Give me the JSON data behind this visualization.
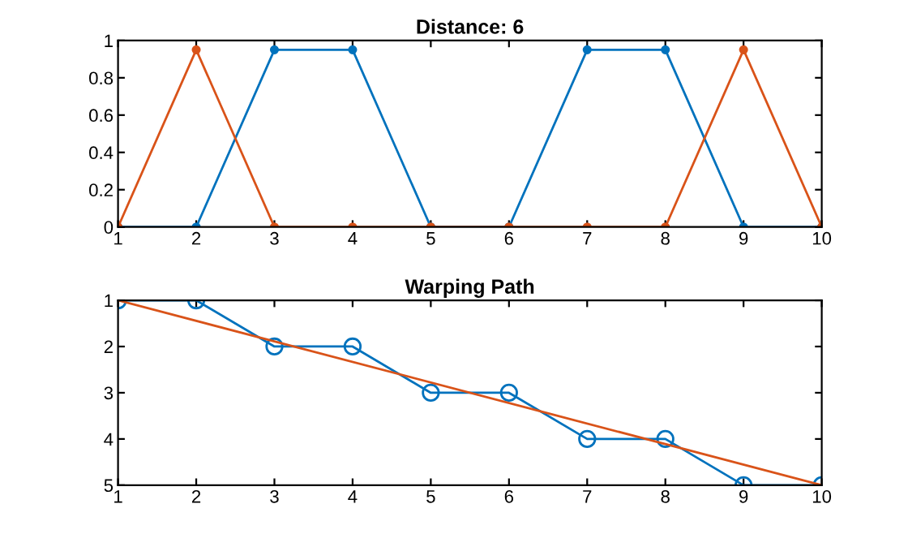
{
  "chart_data": [
    {
      "type": "line",
      "title": "Distance: 6",
      "x": [
        1,
        2,
        3,
        4,
        5,
        6,
        7,
        8,
        9,
        10
      ],
      "xlim": [
        1,
        10
      ],
      "xticks": [
        1,
        2,
        3,
        4,
        5,
        6,
        7,
        8,
        9,
        10
      ],
      "ylim": [
        0,
        1
      ],
      "yticks": [
        0,
        0.2,
        0.4,
        0.6,
        0.8,
        1
      ],
      "grid": false,
      "legend": false,
      "line_style": "solid",
      "series": [
        {
          "color": "#0072bd",
          "marker": "circle",
          "values": [
            0,
            0,
            0.95,
            0.95,
            0,
            0,
            0.95,
            0.95,
            0,
            0
          ]
        },
        {
          "color": "#d95319",
          "marker": "circle",
          "values": [
            0,
            0.95,
            0,
            0,
            0,
            0,
            0,
            0,
            0.95,
            0
          ]
        }
      ]
    },
    {
      "type": "line",
      "title": "Warping Path",
      "xlim": [
        1,
        10
      ],
      "xticks": [
        1,
        2,
        3,
        4,
        5,
        6,
        7,
        8,
        9,
        10
      ],
      "ylim": [
        5,
        1
      ],
      "yticks": [
        1,
        2,
        3,
        4,
        5
      ],
      "grid": false,
      "legend": false,
      "line_style": "solid",
      "series": [
        {
          "color": "#0072bd",
          "marker": "circle",
          "x": [
            1,
            2,
            3,
            4,
            5,
            6,
            7,
            8,
            9,
            10
          ],
          "values": [
            1,
            1,
            2,
            2,
            3,
            3,
            4,
            4,
            5,
            5
          ]
        },
        {
          "color": "#d95319",
          "marker": "none",
          "x": [
            1,
            10
          ],
          "values": [
            1,
            5
          ]
        }
      ]
    }
  ]
}
